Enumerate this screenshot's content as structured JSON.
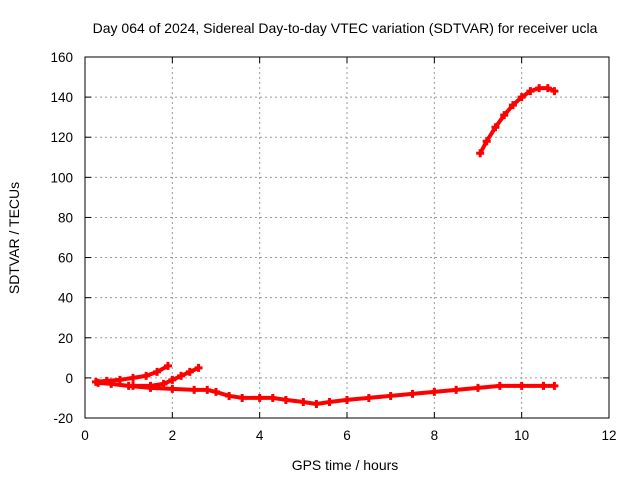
{
  "chart_data": {
    "type": "scatter",
    "title": "Day 064 of 2024, Sidereal Day-to-day VTEC variation (SDTVAR) for receiver ucla",
    "xlabel": "GPS time / hours",
    "ylabel": "SDTVAR / TECUs",
    "xlim": [
      0,
      12
    ],
    "ylim": [
      -20,
      160
    ],
    "xticks": [
      0,
      2,
      4,
      6,
      8,
      10,
      12
    ],
    "yticks": [
      -20,
      0,
      20,
      40,
      60,
      80,
      100,
      120,
      140,
      160
    ],
    "grid": true,
    "color": "#ff0000",
    "series": [
      {
        "name": "track-upper-left",
        "x": [
          0.25,
          0.5,
          0.8,
          1.1,
          1.4,
          1.65,
          1.9
        ],
        "y": [
          -2,
          -1.5,
          -1,
          0,
          1,
          3,
          6
        ]
      },
      {
        "name": "track-mid-rising",
        "x": [
          1.1,
          1.5,
          1.8,
          2.0,
          2.2,
          2.4,
          2.6
        ],
        "y": [
          -4,
          -4,
          -3,
          -1,
          1,
          3,
          5
        ]
      },
      {
        "name": "track-lower-main",
        "x": [
          0.3,
          0.6,
          1.0,
          1.5,
          2.0,
          2.5,
          2.8,
          3.0,
          3.3,
          3.6,
          4.0,
          4.3,
          4.6,
          5.0,
          5.3,
          5.6,
          6.0,
          6.5,
          7.0,
          7.5,
          8.0,
          8.5,
          9.0,
          9.5,
          10.0,
          10.5,
          10.75
        ],
        "y": [
          -2.5,
          -3,
          -4,
          -5,
          -5.5,
          -6,
          -6,
          -7,
          -9,
          -10,
          -10,
          -10,
          -11,
          -12,
          -13,
          -12,
          -11,
          -10,
          -9,
          -8,
          -7,
          -6,
          -5,
          -4,
          -4,
          -4,
          -4
        ]
      },
      {
        "name": "track-high",
        "x": [
          9.05,
          9.2,
          9.4,
          9.6,
          9.8,
          10.0,
          10.2,
          10.4,
          10.6,
          10.75
        ],
        "y": [
          112,
          118,
          125,
          131,
          136,
          140,
          143,
          144.5,
          144.5,
          143
        ]
      }
    ]
  }
}
